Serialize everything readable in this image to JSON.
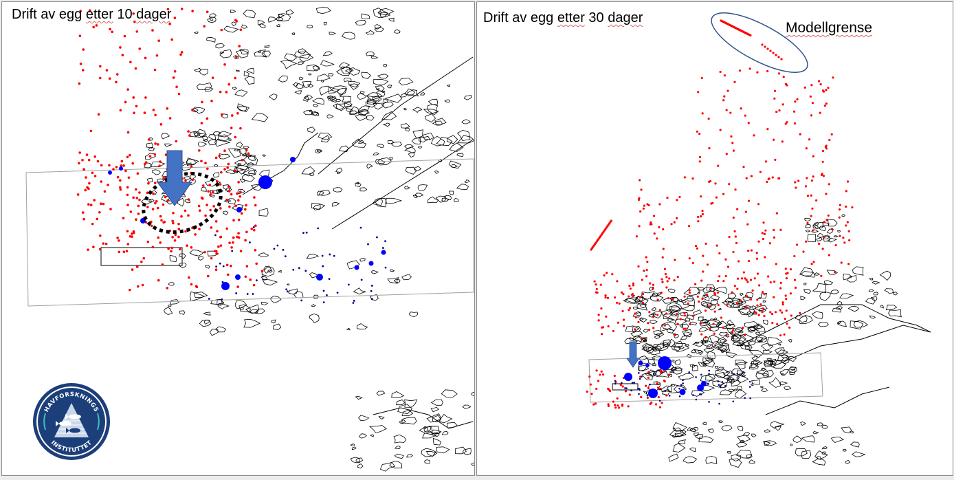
{
  "figure": {
    "panels": [
      {
        "id": "10-days",
        "title_parts": [
          "Drift av egg ",
          "etter",
          " 10 ",
          "dager"
        ],
        "title": "Drift av egg etter 10 dager",
        "annotations": [
          "blue-arrow-release-site",
          "dotted-ellipse-spawning-area",
          "study-area-rectangle",
          "inner-box"
        ]
      },
      {
        "id": "30-days",
        "title_parts": [
          "Drift av egg ",
          "etter",
          " 30 ",
          "dager"
        ],
        "title": "Drift av egg etter 30 dager",
        "label": "Modellgrense",
        "annotations": [
          "blue-arrow-release-site",
          "model-boundary-ellipse",
          "study-area-rectangle",
          "inner-box"
        ]
      }
    ],
    "legend_colors": {
      "egg_particles": "#ff0000",
      "catch_stations_large": "#0000ff",
      "stations_small": "#000080",
      "coastline": "#000000",
      "arrow": "#4472c4",
      "ellipse": "#2f528f",
      "study_area": "#a0a0a0"
    },
    "logo": {
      "top_text": "HAVFORSKNINGS",
      "bottom_text": "INSTITUTTET",
      "color": "#1c3f7a"
    }
  }
}
